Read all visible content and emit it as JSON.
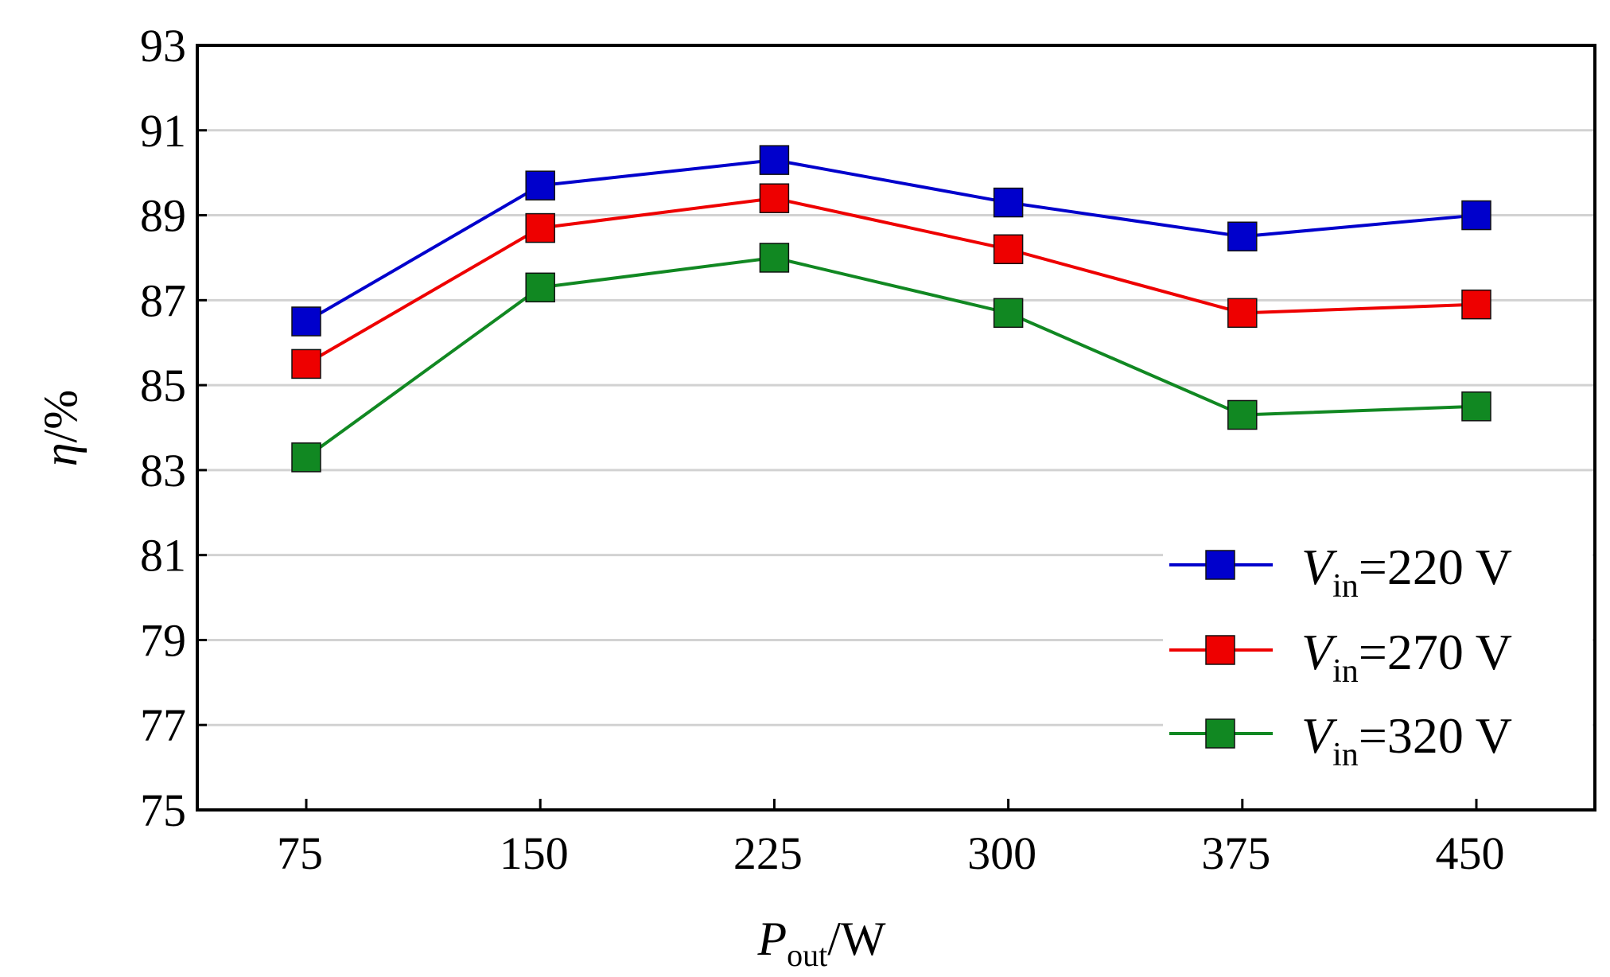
{
  "chart_data": {
    "type": "line",
    "x_label": {
      "main": "P",
      "sub": "out",
      "suffix": "/W"
    },
    "y_label": {
      "main": "η",
      "suffix": "/%"
    },
    "categories": [
      "75",
      "150",
      "225",
      "300",
      "375",
      "450"
    ],
    "x": [
      75,
      150,
      225,
      300,
      375,
      450
    ],
    "y_ticks": [
      "75",
      "77",
      "79",
      "81",
      "83",
      "85",
      "87",
      "89",
      "91",
      "93"
    ],
    "ylim": [
      75,
      93
    ],
    "grid": "horizontal",
    "legend_position": "bottom-right",
    "series": [
      {
        "label_main": "V",
        "label_sub": "in",
        "label_rest": "=220 V",
        "color": "#0000cc",
        "values": [
          86.5,
          89.7,
          90.3,
          89.3,
          88.5,
          89.0
        ]
      },
      {
        "label_main": "V",
        "label_sub": "in",
        "label_rest": "=270 V",
        "color": "#ee0000",
        "values": [
          85.5,
          88.7,
          89.4,
          88.2,
          86.7,
          86.9
        ]
      },
      {
        "label_main": "V",
        "label_sub": "in",
        "label_rest": "=320 V",
        "color": "#118822",
        "values": [
          83.3,
          87.3,
          88.0,
          86.7,
          84.3,
          84.5
        ]
      }
    ]
  }
}
